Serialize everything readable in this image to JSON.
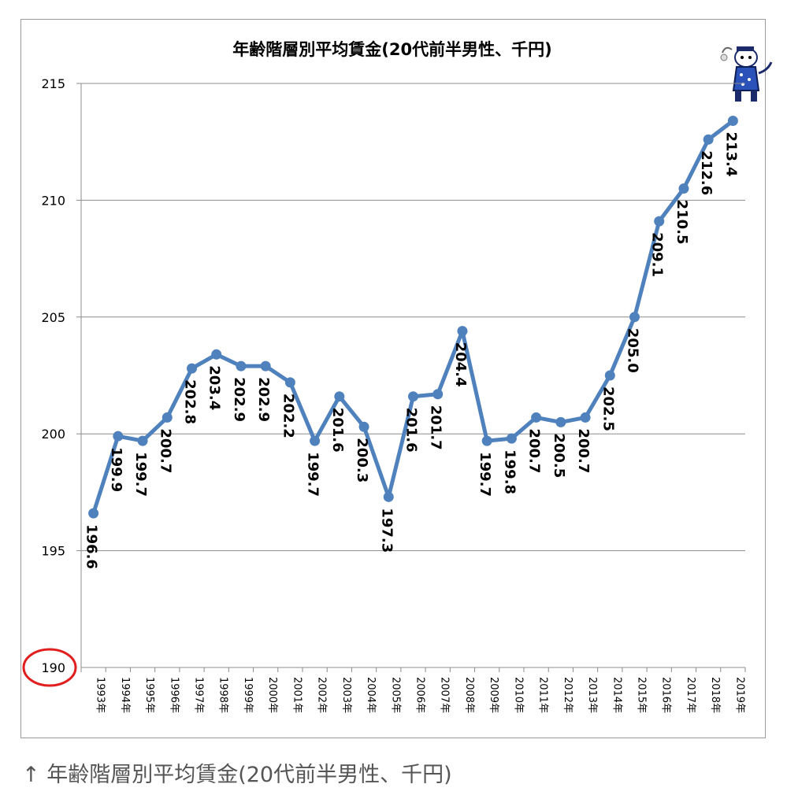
{
  "caption": "↑ 年齢階層別平均賃金(20代前半男性、千円)",
  "colors": {
    "line": "#4f81bd",
    "grid": "#8c8c8c",
    "highlight": "#e01e1e",
    "text": "#000000"
  },
  "chart_data": {
    "type": "line",
    "title": "年齢階層別平均賃金(20代前半男性、千円)",
    "xlabel": "",
    "ylabel": "",
    "ylim": [
      190,
      215
    ],
    "yticks": [
      "190",
      "195",
      "200",
      "205",
      "210",
      "215"
    ],
    "categories": [
      "1993年",
      "1994年",
      "1995年",
      "1996年",
      "1997年",
      "1998年",
      "1999年",
      "2000年",
      "2001年",
      "2002年",
      "2003年",
      "2004年",
      "2005年",
      "2006年",
      "2007年",
      "2008年",
      "2009年",
      "2010年",
      "2011年",
      "2012年",
      "2013年",
      "2014年",
      "2015年",
      "2016年",
      "2017年",
      "2018年",
      "2019年"
    ],
    "values": [
      196.6,
      199.9,
      199.7,
      200.7,
      202.8,
      203.4,
      202.9,
      202.9,
      202.2,
      199.7,
      201.6,
      200.3,
      197.3,
      201.6,
      201.7,
      204.4,
      199.7,
      199.8,
      200.7,
      200.5,
      200.7,
      202.5,
      205.0,
      209.1,
      210.5,
      212.6,
      213.4
    ],
    "labels": [
      "196.6",
      "199.9",
      "199.7",
      "200.7",
      "202.8",
      "203.4",
      "202.9",
      "202.9",
      "202.2",
      "199.7",
      "201.6",
      "200.3",
      "197.3",
      "201.6",
      "201.7",
      "204.4",
      "199.7",
      "199.8",
      "200.7",
      "200.5",
      "200.7",
      "202.5",
      "205.0",
      "209.1",
      "210.5",
      "212.6",
      "213.4"
    ],
    "grid": true,
    "legend": "none",
    "annotation": "190 axis label circled in red"
  }
}
